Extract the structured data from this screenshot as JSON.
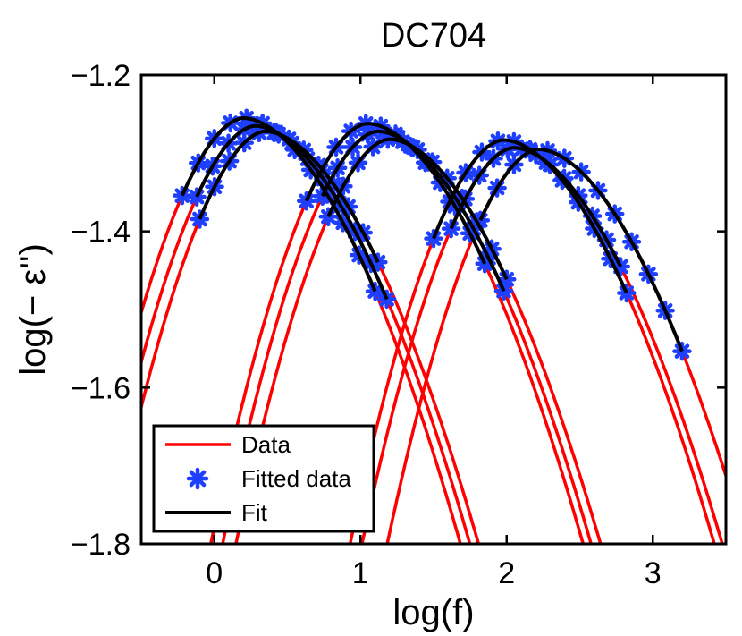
{
  "chart_data": {
    "type": "line",
    "title": "DC704",
    "xlabel": "log(f)",
    "ylabel": "log(− ε'')",
    "xlim": [
      -0.5,
      3.5
    ],
    "ylim": [
      -1.8,
      -1.2
    ],
    "xticks": [
      0,
      1,
      2,
      3
    ],
    "yticks": [
      -1.2,
      -1.4,
      -1.6,
      -1.8
    ],
    "xtick_labels": [
      "0",
      "1",
      "2",
      "3"
    ],
    "ytick_labels": [
      "−1.2",
      "−1.4",
      "−1.6",
      "−1.8"
    ],
    "grid": false,
    "legend_position": "bottom-left",
    "legend": [
      {
        "label": "Data",
        "style": "line",
        "color": "#ff0000"
      },
      {
        "label": "Fitted data",
        "style": "marker",
        "color": "#1f3fff"
      },
      {
        "label": "Fit",
        "style": "line",
        "color": "#000000"
      }
    ],
    "colors": {
      "data": "#ff0000",
      "fitted": "#1f3fff",
      "fit": "#000000"
    },
    "series": [
      {
        "peak_x": 0.2,
        "peak_y": -1.255,
        "fit_x": [
          -0.22,
          1.1
        ]
      },
      {
        "peak_x": 0.28,
        "peak_y": -1.265,
        "fit_x": [
          -0.12,
          1.18
        ]
      },
      {
        "peak_x": 0.35,
        "peak_y": -1.272,
        "fit_x": [
          -0.1,
          1.12
        ]
      },
      {
        "peak_x": 1.05,
        "peak_y": -1.262,
        "fit_x": [
          0.63,
          1.85
        ]
      },
      {
        "peak_x": 1.12,
        "peak_y": -1.272,
        "fit_x": [
          0.74,
          1.98
        ]
      },
      {
        "peak_x": 1.2,
        "peak_y": -1.282,
        "fit_x": [
          0.78,
          2.0
        ]
      },
      {
        "peak_x": 1.98,
        "peak_y": -1.283,
        "fit_x": [
          1.5,
          2.82
        ]
      },
      {
        "peak_x": 2.05,
        "peak_y": -1.293,
        "fit_x": [
          1.62,
          2.78
        ]
      },
      {
        "peak_x": 2.22,
        "peak_y": -1.295,
        "fit_x": [
          1.82,
          3.2
        ]
      }
    ]
  }
}
